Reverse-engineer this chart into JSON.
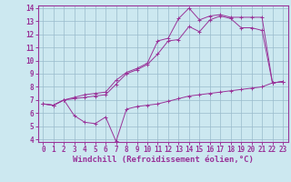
{
  "bg_color": "#cce8f0",
  "line_color": "#993399",
  "grid_color": "#99bbcc",
  "xlabel": "Windchill (Refroidissement éolien,°C)",
  "xlabel_fontsize": 6.5,
  "tick_fontsize": 5.5,
  "xlim": [
    -0.5,
    23.5
  ],
  "ylim": [
    3.8,
    14.2
  ],
  "xticks": [
    0,
    1,
    2,
    3,
    4,
    5,
    6,
    7,
    8,
    9,
    10,
    11,
    12,
    13,
    14,
    15,
    16,
    17,
    18,
    19,
    20,
    21,
    22,
    23
  ],
  "yticks": [
    4,
    5,
    6,
    7,
    8,
    9,
    10,
    11,
    12,
    13,
    14
  ],
  "line1_x": [
    0,
    1,
    2,
    3,
    4,
    5,
    6,
    7,
    8,
    9,
    10,
    11,
    12,
    13,
    14,
    15,
    16,
    17,
    18,
    19,
    20,
    21,
    22,
    23
  ],
  "line1_y": [
    6.7,
    6.6,
    7.0,
    5.8,
    5.3,
    5.2,
    5.7,
    3.85,
    6.3,
    6.5,
    6.6,
    6.7,
    6.9,
    7.1,
    7.3,
    7.4,
    7.5,
    7.6,
    7.7,
    7.8,
    7.9,
    8.0,
    8.3,
    8.4
  ],
  "line2_x": [
    0,
    1,
    2,
    3,
    4,
    5,
    6,
    7,
    8,
    9,
    10,
    11,
    12,
    13,
    14,
    15,
    16,
    17,
    18,
    19,
    20,
    21,
    22,
    23
  ],
  "line2_y": [
    6.7,
    6.6,
    7.0,
    7.1,
    7.2,
    7.3,
    7.4,
    8.2,
    9.0,
    9.3,
    9.7,
    10.5,
    11.5,
    11.6,
    12.6,
    12.2,
    13.1,
    13.4,
    13.2,
    12.5,
    12.5,
    12.3,
    8.3,
    8.4
  ],
  "line3_x": [
    0,
    1,
    2,
    3,
    4,
    5,
    6,
    7,
    8,
    9,
    10,
    11,
    12,
    13,
    14,
    15,
    16,
    17,
    18,
    19,
    20,
    21,
    22,
    23
  ],
  "line3_y": [
    6.7,
    6.6,
    7.0,
    7.2,
    7.4,
    7.5,
    7.6,
    8.5,
    9.1,
    9.4,
    9.8,
    11.5,
    11.7,
    13.2,
    14.0,
    13.1,
    13.4,
    13.5,
    13.3,
    13.3,
    13.3,
    13.3,
    8.3,
    8.4
  ]
}
